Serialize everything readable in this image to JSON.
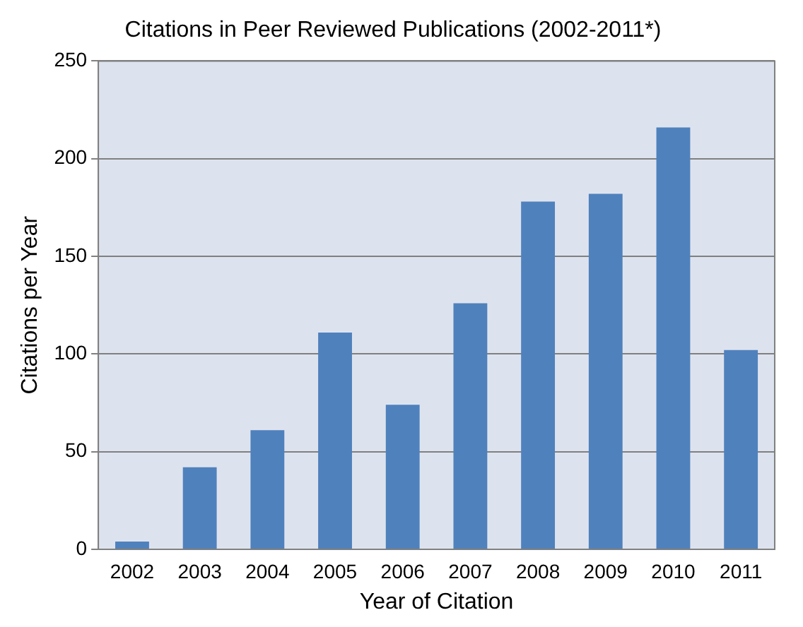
{
  "chart_data": {
    "type": "bar",
    "title": "Citations in Peer Reviewed Publications (2002-2011*)",
    "xlabel": "Year of Citation",
    "ylabel": "Citations per Year",
    "categories": [
      "2002",
      "2003",
      "2004",
      "2005",
      "2006",
      "2007",
      "2008",
      "2009",
      "2010",
      "2011"
    ],
    "values": [
      4,
      42,
      61,
      111,
      74,
      126,
      178,
      182,
      216,
      102
    ],
    "color": "#4f81bd",
    "ylim": [
      0,
      250
    ],
    "yticks": [
      0,
      50,
      100,
      150,
      200,
      250
    ],
    "grid": "y"
  }
}
